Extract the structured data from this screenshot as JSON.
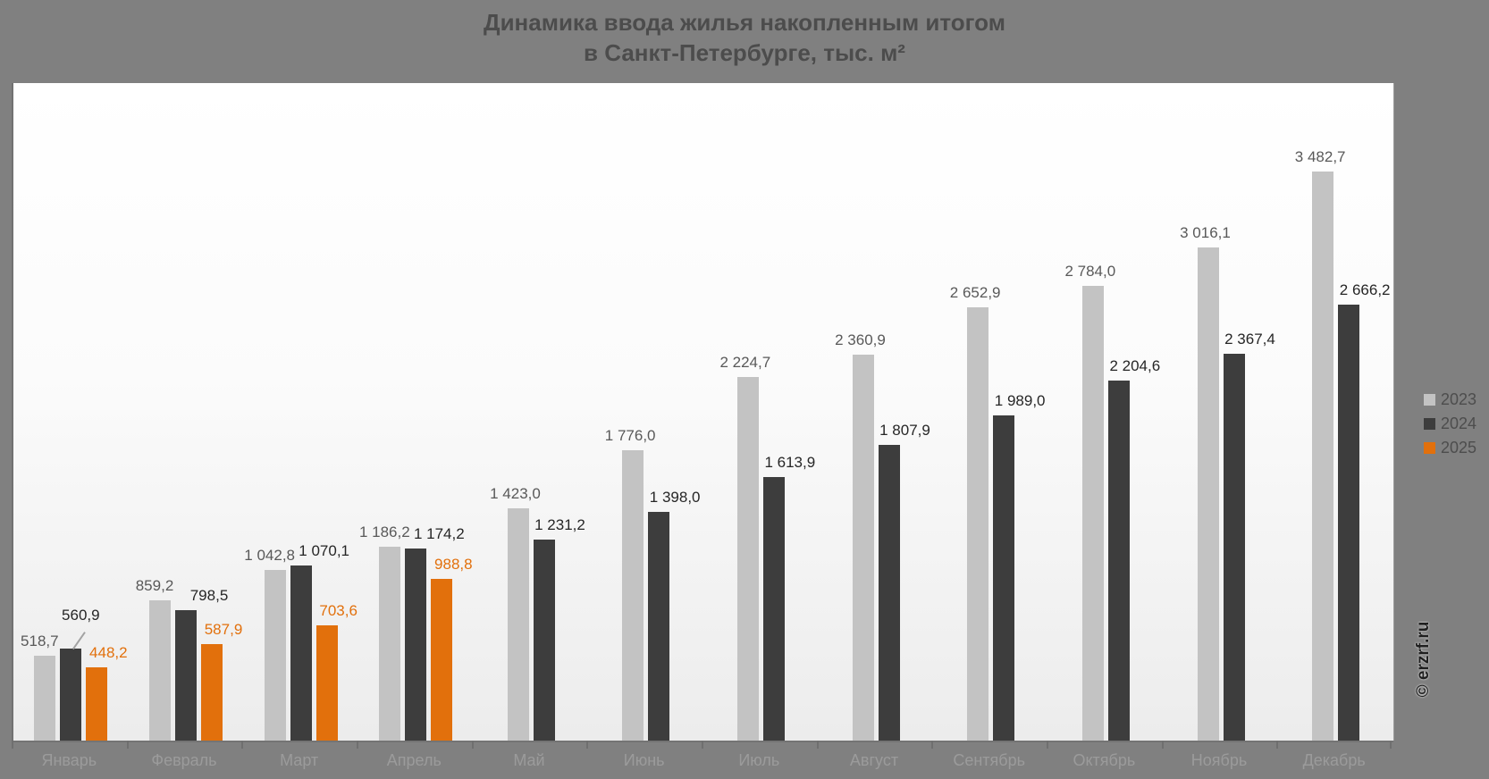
{
  "title": {
    "line1": "Динамика ввода жилья накопленным итогом",
    "line2": "в Санкт-Петербурге, тыс. м²"
  },
  "watermark": "© erzrf.ru",
  "colors": {
    "background": "#808080",
    "title_text": "#4c4c4c",
    "axis": "#747474",
    "month_label": "#9b9b9b",
    "legend_text": "#4d4d4d",
    "series_2023": "#c3c3c3",
    "series_2024": "#3d3d3d",
    "series_2025": "#e2700c"
  },
  "chart_data": {
    "type": "bar",
    "title": "Динамика ввода жилья накопленным итогом в Санкт-Петербурге, тыс. м²",
    "xlabel": "",
    "ylabel": "тыс. м²",
    "ylim": [
      0,
      4000
    ],
    "grid": false,
    "legend_position": "right",
    "value_labels": true,
    "categories": [
      "Январь",
      "Февраль",
      "Март",
      "Апрель",
      "Май",
      "Июнь",
      "Июль",
      "Август",
      "Сентябрь",
      "Октябрь",
      "Ноябрь",
      "Декабрь"
    ],
    "series": [
      {
        "name": "2023",
        "color": "#c3c3c3",
        "label_color": "#595959",
        "values": [
          518.7,
          859.2,
          1042.8,
          1186.2,
          1423.0,
          1776.0,
          2224.7,
          2360.9,
          2652.9,
          2784.0,
          3016.1,
          3482.7
        ],
        "labels": [
          "518,7",
          "859,2",
          "1 042,8",
          "1 186,2",
          "1 423,0",
          "1 776,0",
          "2 224,7",
          "2 360,9",
          "2 652,9",
          "2 784,0",
          "3 016,1",
          "3 482,7"
        ]
      },
      {
        "name": "2024",
        "color": "#3d3d3d",
        "label_color": "#262626",
        "values": [
          560.9,
          798.5,
          1070.1,
          1174.2,
          1231.2,
          1398.0,
          1613.9,
          1807.9,
          1989.0,
          2204.6,
          2367.4,
          2666.2
        ],
        "labels": [
          "560,9",
          "798,5",
          "1 070,1",
          "1 174,2",
          "1 231,2",
          "1 398,0",
          "1 613,9",
          "1 807,9",
          "1 989,0",
          "2 204,6",
          "2 367,4",
          "2 666,2"
        ]
      },
      {
        "name": "2025",
        "color": "#e2700c",
        "label_color": "#e2700c",
        "values": [
          448.2,
          587.9,
          703.6,
          988.8,
          null,
          null,
          null,
          null,
          null,
          null,
          null,
          null
        ],
        "labels": [
          "448,2",
          "587,9",
          "703,6",
          "988,8"
        ]
      }
    ]
  }
}
